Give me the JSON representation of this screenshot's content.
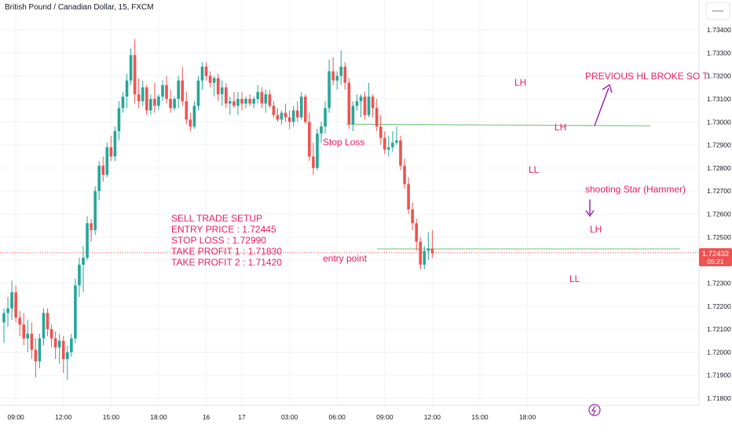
{
  "header": {
    "title": "British Pound / Canadian Dollar, 15, FXCM"
  },
  "chart_data": {
    "type": "candlestick",
    "title": "British Pound / Canadian Dollar, 15, FXCM",
    "symbol": "GBPCAD",
    "timeframe": "15",
    "source": "FXCM",
    "ylim": [
      1.7175,
      1.7345
    ],
    "y_ticks": [
      "1.73400",
      "1.73300",
      "1.73200",
      "1.73100",
      "1.73000",
      "1.72900",
      "1.72800",
      "1.72700",
      "1.72600",
      "1.72500",
      "1.72400",
      "1.72300",
      "1.72200",
      "1.72100",
      "1.72000",
      "1.71900",
      "1.71800"
    ],
    "x_ticks": [
      {
        "label": "09:00",
        "index": 3
      },
      {
        "label": "12:00",
        "index": 15
      },
      {
        "label": "15:00",
        "index": 27
      },
      {
        "label": "18:00",
        "index": 39
      },
      {
        "label": "16",
        "index": 51
      },
      {
        "label": "17",
        "index": 60
      },
      {
        "label": "03:00",
        "index": 72
      },
      {
        "label": "06:00",
        "index": 84
      },
      {
        "label": "09:00",
        "index": 96
      },
      {
        "label": "12:00",
        "index": 108
      },
      {
        "label": "15:00",
        "index": 120
      },
      {
        "label": "18:00",
        "index": 132
      }
    ],
    "current_price": "1.72432",
    "countdown": "05:21",
    "candles": [
      [
        1.7213,
        1.7219,
        1.7204,
        1.7217
      ],
      [
        1.7217,
        1.7224,
        1.7211,
        1.7219
      ],
      [
        1.7219,
        1.7231,
        1.7214,
        1.7226
      ],
      [
        1.7226,
        1.7229,
        1.7213,
        1.7215
      ],
      [
        1.7215,
        1.7218,
        1.7207,
        1.7212
      ],
      [
        1.7212,
        1.7217,
        1.7203,
        1.7206
      ],
      [
        1.7206,
        1.7214,
        1.72,
        1.7208
      ],
      [
        1.7208,
        1.7213,
        1.7197,
        1.7201
      ],
      [
        1.7201,
        1.7206,
        1.7189,
        1.7196
      ],
      [
        1.7196,
        1.7208,
        1.7193,
        1.7206
      ],
      [
        1.7206,
        1.7219,
        1.7203,
        1.7217
      ],
      [
        1.7217,
        1.7219,
        1.7207,
        1.721
      ],
      [
        1.721,
        1.7212,
        1.7202,
        1.7206
      ],
      [
        1.7206,
        1.7209,
        1.7197,
        1.7202
      ],
      [
        1.7202,
        1.7208,
        1.7195,
        1.7205
      ],
      [
        1.7205,
        1.7207,
        1.7191,
        1.7197
      ],
      [
        1.7197,
        1.7203,
        1.7188,
        1.72
      ],
      [
        1.72,
        1.7208,
        1.7198,
        1.7206
      ],
      [
        1.7206,
        1.7232,
        1.7204,
        1.7229
      ],
      [
        1.7229,
        1.7241,
        1.7224,
        1.7238
      ],
      [
        1.7238,
        1.7246,
        1.7226,
        1.7241
      ],
      [
        1.7241,
        1.7259,
        1.724,
        1.7256
      ],
      [
        1.7256,
        1.7258,
        1.7248,
        1.7253
      ],
      [
        1.7253,
        1.7272,
        1.7251,
        1.727
      ],
      [
        1.727,
        1.7283,
        1.7266,
        1.7281
      ],
      [
        1.7281,
        1.7285,
        1.7274,
        1.7277
      ],
      [
        1.7277,
        1.7291,
        1.7276,
        1.7289
      ],
      [
        1.7289,
        1.7294,
        1.7283,
        1.7285
      ],
      [
        1.7285,
        1.7298,
        1.7283,
        1.7296
      ],
      [
        1.7296,
        1.7309,
        1.7292,
        1.7306
      ],
      [
        1.7306,
        1.7313,
        1.7304,
        1.7311
      ],
      [
        1.7311,
        1.7321,
        1.7306,
        1.7318
      ],
      [
        1.7318,
        1.7332,
        1.7316,
        1.7329
      ],
      [
        1.7329,
        1.7336,
        1.7308,
        1.7312
      ],
      [
        1.7312,
        1.7319,
        1.7306,
        1.7309
      ],
      [
        1.7309,
        1.7318,
        1.7307,
        1.7315
      ],
      [
        1.7315,
        1.7316,
        1.7303,
        1.7305
      ],
      [
        1.7305,
        1.7312,
        1.7303,
        1.731
      ],
      [
        1.731,
        1.7317,
        1.7304,
        1.7307
      ],
      [
        1.7307,
        1.7312,
        1.7305,
        1.7311
      ],
      [
        1.7311,
        1.7318,
        1.7309,
        1.7316
      ],
      [
        1.7316,
        1.732,
        1.7308,
        1.731
      ],
      [
        1.731,
        1.7314,
        1.7304,
        1.7306
      ],
      [
        1.7306,
        1.7311,
        1.7305,
        1.731
      ],
      [
        1.731,
        1.732,
        1.7306,
        1.7318
      ],
      [
        1.7318,
        1.7324,
        1.7307,
        1.7309
      ],
      [
        1.7309,
        1.7313,
        1.7299,
        1.7301
      ],
      [
        1.7301,
        1.7304,
        1.7296,
        1.7298
      ],
      [
        1.7298,
        1.7309,
        1.7297,
        1.7307
      ],
      [
        1.7307,
        1.732,
        1.7305,
        1.7318
      ],
      [
        1.7318,
        1.7326,
        1.7314,
        1.7324
      ],
      [
        1.7324,
        1.7326,
        1.7318,
        1.732
      ],
      [
        1.732,
        1.7322,
        1.7315,
        1.7317
      ],
      [
        1.7317,
        1.732,
        1.7311,
        1.7319
      ],
      [
        1.7319,
        1.7321,
        1.7309,
        1.7312
      ],
      [
        1.7312,
        1.7318,
        1.7307,
        1.7315
      ],
      [
        1.7315,
        1.7317,
        1.7306,
        1.7308
      ],
      [
        1.7308,
        1.7311,
        1.7303,
        1.7309
      ],
      [
        1.7309,
        1.7313,
        1.7306,
        1.7307
      ],
      [
        1.7307,
        1.7313,
        1.7303,
        1.731
      ],
      [
        1.731,
        1.7313,
        1.7305,
        1.7308
      ],
      [
        1.7308,
        1.7311,
        1.7306,
        1.731
      ],
      [
        1.731,
        1.7312,
        1.7307,
        1.7308
      ],
      [
        1.7308,
        1.7311,
        1.7306,
        1.731
      ],
      [
        1.731,
        1.7316,
        1.7308,
        1.7313
      ],
      [
        1.7313,
        1.7315,
        1.7306,
        1.7308
      ],
      [
        1.7308,
        1.7314,
        1.7304,
        1.7312
      ],
      [
        1.7312,
        1.7314,
        1.7306,
        1.7307
      ],
      [
        1.7307,
        1.7309,
        1.7302,
        1.7303
      ],
      [
        1.7303,
        1.7306,
        1.73,
        1.7301
      ],
      [
        1.7301,
        1.7305,
        1.7299,
        1.7304
      ],
      [
        1.7304,
        1.7308,
        1.73,
        1.7302
      ],
      [
        1.7302,
        1.7305,
        1.7297,
        1.73
      ],
      [
        1.73,
        1.7307,
        1.7298,
        1.7305
      ],
      [
        1.7305,
        1.7309,
        1.73,
        1.7302
      ],
      [
        1.7302,
        1.7313,
        1.7301,
        1.7311
      ],
      [
        1.7311,
        1.7312,
        1.7299,
        1.73
      ],
      [
        1.73,
        1.7304,
        1.7283,
        1.7285
      ],
      [
        1.7285,
        1.7291,
        1.7277,
        1.728
      ],
      [
        1.728,
        1.7297,
        1.7279,
        1.7295
      ],
      [
        1.7295,
        1.73,
        1.7291,
        1.7298
      ],
      [
        1.7298,
        1.7309,
        1.7295,
        1.7306
      ],
      [
        1.7306,
        1.7327,
        1.7304,
        1.7322
      ],
      [
        1.7322,
        1.7328,
        1.7316,
        1.7318
      ],
      [
        1.7318,
        1.7322,
        1.7314,
        1.732
      ],
      [
        1.732,
        1.7331,
        1.7316,
        1.7324
      ],
      [
        1.7324,
        1.7326,
        1.7314,
        1.7317
      ],
      [
        1.7317,
        1.7319,
        1.7297,
        1.7299
      ],
      [
        1.7299,
        1.7309,
        1.7296,
        1.7307
      ],
      [
        1.7307,
        1.7312,
        1.7305,
        1.7309
      ],
      [
        1.7309,
        1.7312,
        1.7302,
        1.7311
      ],
      [
        1.7311,
        1.7313,
        1.7301,
        1.7303
      ],
      [
        1.7303,
        1.7317,
        1.7302,
        1.7311
      ],
      [
        1.7311,
        1.7312,
        1.7302,
        1.7306
      ],
      [
        1.7306,
        1.731,
        1.7296,
        1.7298
      ],
      [
        1.7298,
        1.7303,
        1.729,
        1.7293
      ],
      [
        1.7293,
        1.7296,
        1.7286,
        1.7288
      ],
      [
        1.7288,
        1.7294,
        1.7285,
        1.7289
      ],
      [
        1.7289,
        1.7296,
        1.7287,
        1.7291
      ],
      [
        1.7291,
        1.7298,
        1.729,
        1.7292
      ],
      [
        1.7292,
        1.7294,
        1.7279,
        1.7281
      ],
      [
        1.7281,
        1.7284,
        1.7271,
        1.7273
      ],
      [
        1.7273,
        1.7276,
        1.726,
        1.7262
      ],
      [
        1.7262,
        1.7265,
        1.7253,
        1.7256
      ],
      [
        1.7256,
        1.7258,
        1.7244,
        1.7248
      ],
      [
        1.7248,
        1.725,
        1.7236,
        1.7238
      ],
      [
        1.7238,
        1.7246,
        1.7236,
        1.7244
      ],
      [
        1.7244,
        1.7252,
        1.724,
        1.7245
      ],
      [
        1.7245,
        1.7253,
        1.7241,
        1.7243
      ]
    ]
  },
  "annotations": {
    "setup_title": "SELL TRADE SETUP",
    "entry_price": "ENTRY PRICE : 1.72445",
    "stop_loss": "STOP LOSS : 1.72990",
    "take_profit_1": "TAKE PROFIT 1 : 1.71830",
    "take_profit_2": "TAKE PROFIT 2 : 1.71420",
    "stop_loss_label": "Stop Loss",
    "entry_point_label": "entry point",
    "prev_hl": "PREVIOUS HL BROKE SO T",
    "shooting_star": "shooting Star (Hammer)",
    "lh1": "LH",
    "lh2": "LH",
    "lh3": "LH",
    "ll1": "LL",
    "ll2": "LL"
  },
  "lines": {
    "stop_loss_level": 1.7299,
    "entry_level": 1.72445
  },
  "colors": {
    "bull": "#26a69a",
    "bear": "#ef5350",
    "annotation": "#e91e63",
    "arrow": "#9c27b0",
    "hline": "#81c784",
    "grid": "#f0f3fa",
    "axis_text": "#131722",
    "price_tag": "#ef5350"
  }
}
